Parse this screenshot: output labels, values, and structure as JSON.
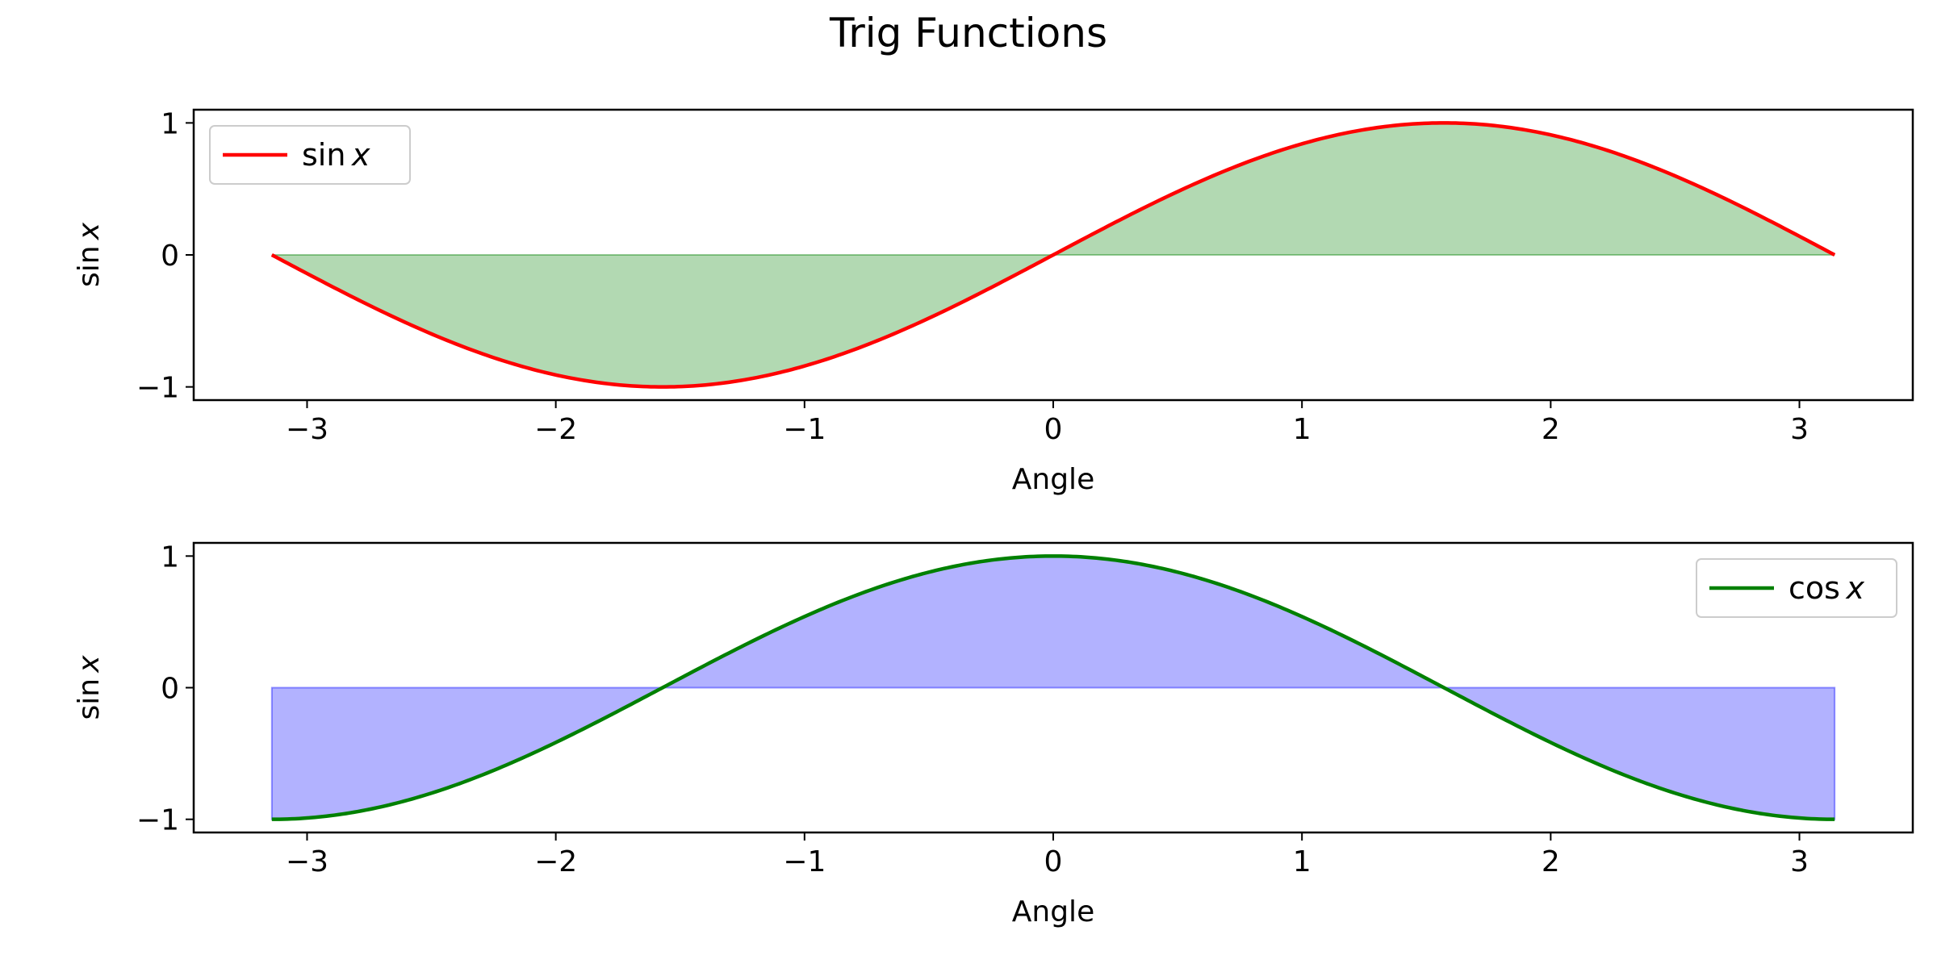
{
  "figure": {
    "title": "Trig Functions"
  },
  "chart_data": [
    {
      "type": "line",
      "function": "sin",
      "x_range": [
        -3.14159,
        3.14159
      ],
      "x": [
        -3.1416,
        -2.618,
        -2.0944,
        -1.5708,
        -1.0472,
        -0.5236,
        0,
        0.5236,
        1.0472,
        1.5708,
        2.0944,
        2.618,
        3.1416
      ],
      "series": [
        {
          "name": "sin x",
          "fn_label": "sin",
          "var_label": "x",
          "color": "#ff0000",
          "values": [
            0,
            -0.5,
            -0.866,
            -1,
            -0.866,
            -0.5,
            0,
            0.5,
            0.866,
            1,
            0.866,
            0.5,
            0
          ]
        }
      ],
      "fill": {
        "between": [
          0,
          "series"
        ],
        "color": "#008000",
        "alpha": 0.3
      },
      "xlabel": "Angle",
      "ylabel": {
        "fn": "sin",
        "var": "x"
      },
      "xlim": [
        -3.4558,
        3.4558
      ],
      "ylim": [
        -1.1,
        1.1
      ],
      "xticks": [
        -3,
        -2,
        -1,
        0,
        1,
        2,
        3
      ],
      "xtick_labels": [
        "−3",
        "−2",
        "−1",
        "0",
        "1",
        "2",
        "3"
      ],
      "yticks": [
        -1,
        0,
        1
      ],
      "ytick_labels": [
        "−1",
        "0",
        "1"
      ],
      "legend": "upper left",
      "grid": false
    },
    {
      "type": "line",
      "function": "cos",
      "x_range": [
        -3.14159,
        3.14159
      ],
      "x": [
        -3.1416,
        -2.618,
        -2.0944,
        -1.5708,
        -1.0472,
        -0.5236,
        0,
        0.5236,
        1.0472,
        1.5708,
        2.0944,
        2.618,
        3.1416
      ],
      "series": [
        {
          "name": "cos x",
          "fn_label": "cos",
          "var_label": "x",
          "color": "#008000",
          "values": [
            -1,
            -0.866,
            -0.5,
            0,
            0.5,
            0.866,
            1,
            0.866,
            0.5,
            0,
            -0.5,
            -0.866,
            -1
          ]
        }
      ],
      "fill": {
        "between": [
          0,
          "series"
        ],
        "color": "#0000ff",
        "alpha": 0.3
      },
      "xlabel": "Angle",
      "ylabel": {
        "fn": "sin",
        "var": "x"
      },
      "xlim": [
        -3.4558,
        3.4558
      ],
      "ylim": [
        -1.1,
        1.1
      ],
      "xticks": [
        -3,
        -2,
        -1,
        0,
        1,
        2,
        3
      ],
      "xtick_labels": [
        "−3",
        "−2",
        "−1",
        "0",
        "1",
        "2",
        "3"
      ],
      "yticks": [
        -1,
        0,
        1
      ],
      "ytick_labels": [
        "−1",
        "0",
        "1"
      ],
      "legend": "upper right",
      "grid": false
    }
  ]
}
